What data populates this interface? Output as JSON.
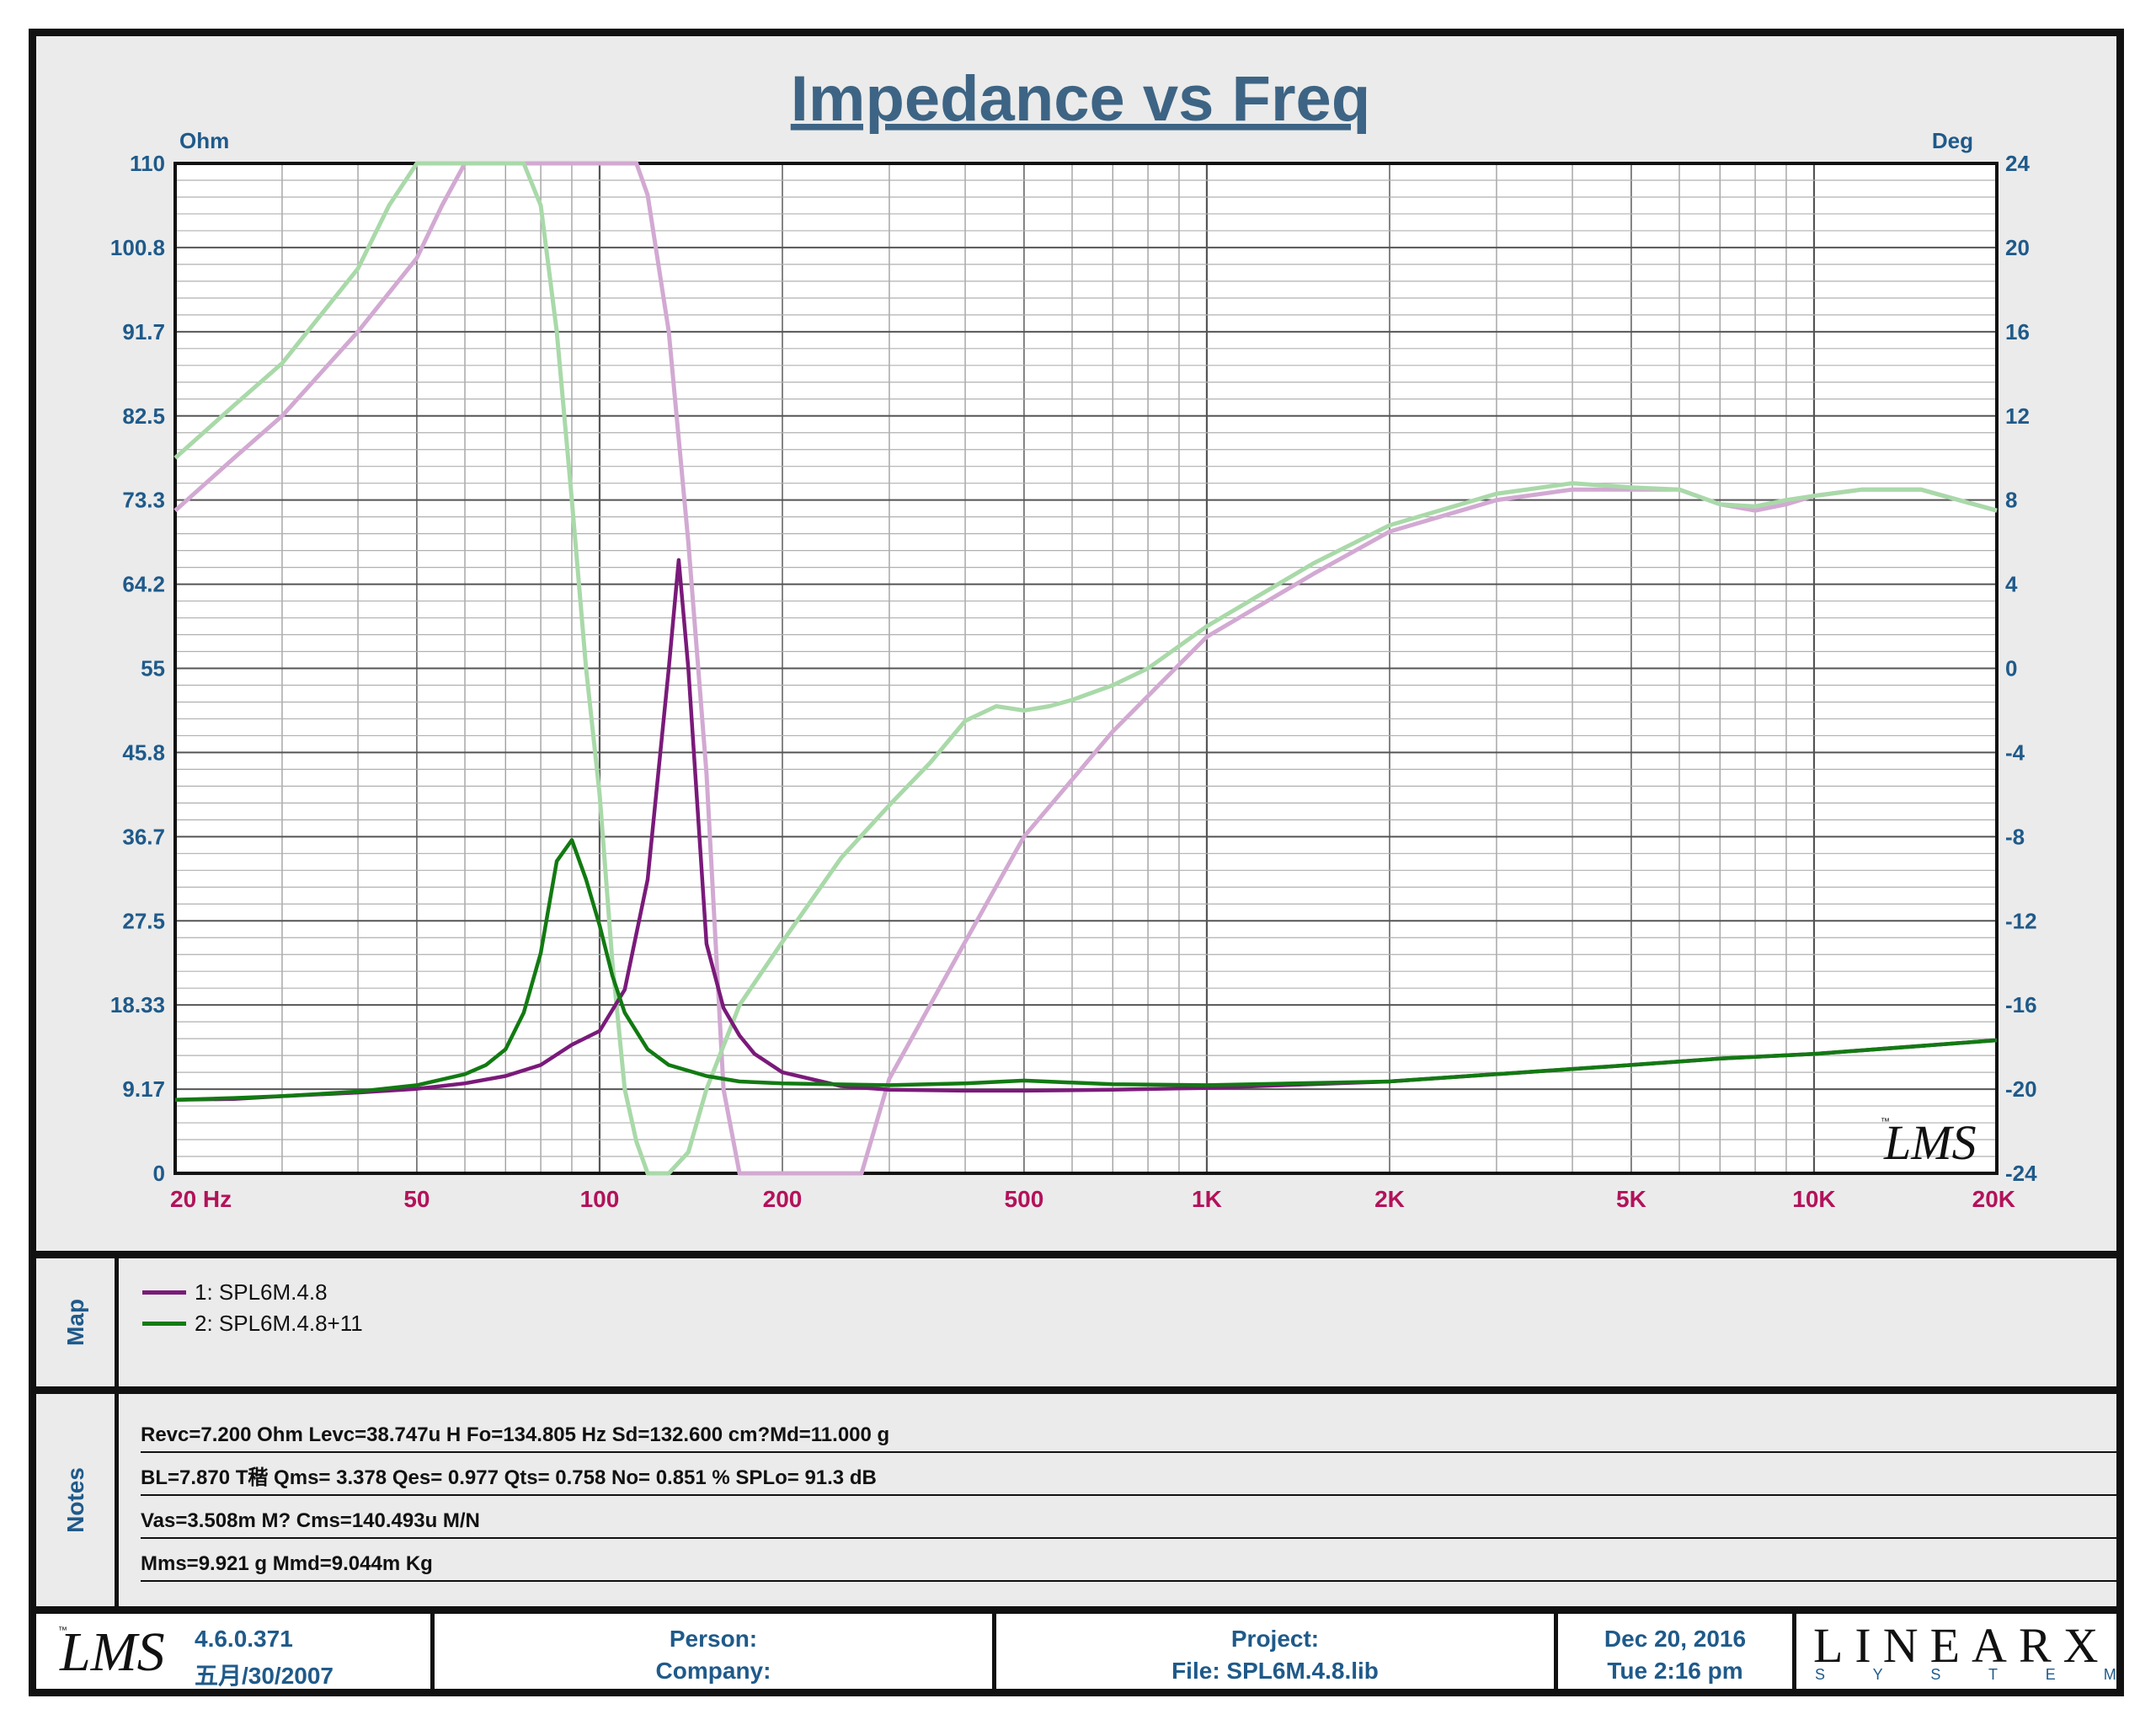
{
  "chart_data": {
    "type": "line",
    "title": "Impedance vs Freq",
    "left_axis": {
      "unit": "Ohm",
      "ylim": [
        0,
        110
      ],
      "tick_labels": [
        "0",
        "9.17",
        "18.33",
        "27.5",
        "36.7",
        "45.8",
        "55",
        "64.2",
        "73.3",
        "82.5",
        "91.7",
        "100.8",
        "110"
      ]
    },
    "right_axis": {
      "unit": "Deg",
      "ylim": [
        -24,
        24
      ],
      "tick_labels": [
        "-24",
        "-20",
        "-16",
        "-12",
        "-8",
        "-4",
        "0",
        "4",
        "8",
        "12",
        "16",
        "20",
        "24"
      ]
    },
    "x_axis": {
      "scale": "log",
      "xlim": [
        20,
        20000
      ],
      "tick_labels": [
        {
          "value": 20,
          "label": "20  Hz"
        },
        {
          "value": 50,
          "label": "50"
        },
        {
          "value": 100,
          "label": "100"
        },
        {
          "value": 200,
          "label": "200"
        },
        {
          "value": 500,
          "label": "500"
        },
        {
          "value": 1000,
          "label": "1K"
        },
        {
          "value": 2000,
          "label": "2K"
        },
        {
          "value": 5000,
          "label": "5K"
        },
        {
          "value": 10000,
          "label": "10K"
        },
        {
          "value": 20000,
          "label": "20K"
        }
      ]
    },
    "grid": true,
    "series": [
      {
        "name": "1: SPL6M.4.8",
        "quantity": "impedance",
        "axis": "left",
        "color": "#7a1a7a",
        "x": [
          20,
          25,
          30,
          40,
          50,
          60,
          70,
          80,
          90,
          100,
          110,
          120,
          130,
          135,
          140,
          150,
          160,
          170,
          180,
          200,
          250,
          300,
          400,
          500,
          700,
          1000,
          2000,
          3000,
          5000,
          7000,
          10000,
          20000
        ],
        "y": [
          8.0,
          8.1,
          8.4,
          8.8,
          9.2,
          9.8,
          10.6,
          11.8,
          14.0,
          15.5,
          20.0,
          32.0,
          55.0,
          66.8,
          55.0,
          25.0,
          18.0,
          15.0,
          13.0,
          11.0,
          9.5,
          9.1,
          9.0,
          9.0,
          9.1,
          9.3,
          10.0,
          10.8,
          11.8,
          12.5,
          13.0,
          14.5
        ]
      },
      {
        "name": "2: SPL6M.4.8+11",
        "quantity": "impedance",
        "axis": "left",
        "color": "#127a12",
        "x": [
          20,
          25,
          30,
          40,
          50,
          60,
          65,
          70,
          75,
          80,
          85,
          90,
          95,
          100,
          105,
          110,
          120,
          130,
          150,
          170,
          200,
          300,
          400,
          500,
          700,
          1000,
          2000,
          3000,
          5000,
          7000,
          10000,
          20000
        ],
        "y": [
          8.0,
          8.2,
          8.4,
          8.9,
          9.6,
          10.8,
          11.8,
          13.5,
          17.5,
          24.0,
          34.0,
          36.3,
          32.0,
          27.0,
          21.5,
          17.5,
          13.5,
          11.8,
          10.6,
          10.0,
          9.8,
          9.6,
          9.8,
          10.1,
          9.7,
          9.6,
          10.0,
          10.8,
          11.8,
          12.5,
          13.0,
          14.5
        ]
      },
      {
        "name": "1: SPL6M.4.8",
        "quantity": "phase",
        "axis": "right",
        "color": "#d2a9d2",
        "x": [
          20,
          25,
          30,
          40,
          50,
          55,
          60,
          80,
          100,
          110,
          115,
          120,
          130,
          140,
          150,
          160,
          170,
          200,
          250,
          270,
          300,
          400,
          500,
          700,
          1000,
          1500,
          2000,
          3000,
          4000,
          5000,
          6000,
          7000,
          8000,
          9000,
          10000,
          12000,
          15000,
          20000
        ],
        "y": [
          7.5,
          10.0,
          12.0,
          16.0,
          19.5,
          22.0,
          24,
          24,
          24,
          24,
          24,
          22.5,
          16.0,
          6.0,
          -5.0,
          -20.0,
          -24,
          -24,
          -24,
          -24,
          -19.5,
          -13.0,
          -8.0,
          -3.0,
          1.5,
          4.5,
          6.5,
          8.0,
          8.5,
          8.5,
          8.5,
          7.8,
          7.5,
          7.8,
          8.2,
          8.5,
          8.5,
          7.5
        ]
      },
      {
        "name": "2: SPL6M.4.8+11",
        "quantity": "phase",
        "axis": "right",
        "color": "#a9d9a9",
        "x": [
          20,
          25,
          30,
          40,
          45,
          50,
          60,
          70,
          75,
          80,
          85,
          90,
          95,
          100,
          105,
          110,
          115,
          120,
          130,
          140,
          150,
          170,
          200,
          250,
          300,
          350,
          400,
          450,
          500,
          550,
          600,
          700,
          800,
          1000,
          1500,
          2000,
          3000,
          4000,
          5000,
          6000,
          7000,
          8000,
          9000,
          10000,
          12000,
          15000,
          20000
        ],
        "y": [
          10.0,
          12.5,
          14.5,
          19.0,
          22.0,
          24,
          24,
          24,
          24,
          22.0,
          16.0,
          8.0,
          0.0,
          -6.0,
          -14.0,
          -20.0,
          -22.5,
          -24,
          -24,
          -23.0,
          -20.0,
          -16.0,
          -13.0,
          -9.0,
          -6.5,
          -4.5,
          -2.5,
          -1.8,
          -2.0,
          -1.8,
          -1.5,
          -0.8,
          0.0,
          2.0,
          5.0,
          6.8,
          8.3,
          8.8,
          8.6,
          8.5,
          7.8,
          7.7,
          8.0,
          8.2,
          8.5,
          8.5,
          7.5
        ]
      }
    ]
  },
  "watermark": {
    "text": "LMS",
    "tm": "™"
  },
  "map": {
    "label": "Map",
    "items": [
      {
        "label": "1: SPL6M.4.8",
        "color": "#7a1a7a"
      },
      {
        "label": "2: SPL6M.4.8+11",
        "color": "#127a12"
      }
    ]
  },
  "notes": {
    "label": "Notes",
    "lines": [
      "Revc=7.200 Ohm  Levc=38.747u H  Fo=134.805 Hz  Sd=132.600 cm?Md=11.000 g",
      "BL=7.870 T稭  Qms= 3.378  Qes= 0.977  Qts= 0.758  No= 0.851 %  SPLo= 91.3 dB",
      "Vas=3.508m M? Cms=140.493u M/N",
      "Mms=9.921 g  Mmd=9.044m Kg"
    ]
  },
  "footer": {
    "logo": "LMS",
    "version": "4.6.0.371",
    "build_date": "五月/30/2007",
    "person_label": "Person:",
    "company_label": "Company:",
    "project_label": "Project:",
    "file_label": "File: SPL6M.4.8.lib",
    "date": "Dec 20, 2016",
    "time": "Tue  2:16 pm",
    "brand": "LINEARX",
    "brand_sub": "S Y S T E M S"
  }
}
